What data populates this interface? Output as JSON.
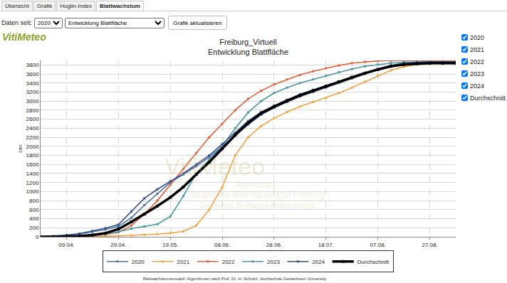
{
  "page": {
    "tabs": [
      "Übersicht",
      "Grafik",
      "Huglin-Index",
      "Blattwachstum"
    ],
    "active_tab": "Blattwachstum",
    "controls": {
      "label": "Daten seit:",
      "year": "2020",
      "dataset": "Entwicklung Blattfläche",
      "button": "Grafik aktualisieren"
    },
    "logo": "VitiMeteo",
    "checkboxes": [
      "2020",
      "2021",
      "2022",
      "2023",
      "2024",
      "Durchschnitt"
    ],
    "watermark": [
      "VitiMeteo",
      "Agroscope",
      "Staatliches Weinbauinstitut Freiburg",
      "Geosens Softwareentwicklung"
    ],
    "footer": "Rebwachstumsmodell: Algorithmen nach Prof. Dr. H. Schultz, Hochschule Geisenheim University."
  },
  "chart_data": {
    "type": "line",
    "title": "Freiburg_Virtuell",
    "subtitle": "Entwicklung Blattfläche",
    "y_label": "cm²",
    "categories": [
      null,
      null,
      "09.04.",
      null,
      null,
      null,
      "29.04.",
      null,
      null,
      null,
      "19.05.",
      null,
      null,
      null,
      "08.06.",
      null,
      null,
      null,
      "28.06.",
      null,
      null,
      null,
      "18.07.",
      null,
      null,
      null,
      "07.08.",
      null,
      null,
      null,
      "27.08.",
      null,
      null
    ],
    "series": [
      {
        "name": "2020",
        "color": "#4f72a6",
        "values": [
          0,
          10,
          30,
          60,
          110,
          160,
          230,
          420,
          700,
          950,
          1200,
          1380,
          1560,
          1760,
          2000,
          2250,
          2480,
          2700,
          2850,
          2980,
          3100,
          3200,
          3300,
          3400,
          3500,
          3600,
          3700,
          3780,
          3830,
          3850,
          3860,
          3860,
          3860
        ]
      },
      {
        "name": "2021",
        "color": "#f2a447",
        "values": [
          0,
          0,
          0,
          0,
          5,
          10,
          20,
          30,
          45,
          60,
          80,
          120,
          250,
          600,
          1100,
          1800,
          2200,
          2450,
          2620,
          2760,
          2880,
          2980,
          3070,
          3180,
          3300,
          3430,
          3560,
          3680,
          3760,
          3810,
          3830,
          3840,
          3840
        ]
      },
      {
        "name": "2022",
        "color": "#e2603a",
        "values": [
          0,
          0,
          5,
          10,
          20,
          50,
          100,
          250,
          500,
          800,
          1150,
          1500,
          1850,
          2200,
          2500,
          2800,
          3050,
          3230,
          3370,
          3480,
          3580,
          3660,
          3730,
          3790,
          3840,
          3870,
          3890,
          3895,
          3895,
          3895,
          3895,
          3895,
          3895
        ]
      },
      {
        "name": "2023",
        "color": "#4b97a3",
        "values": [
          0,
          0,
          5,
          15,
          30,
          60,
          110,
          180,
          230,
          280,
          450,
          900,
          1400,
          1700,
          2000,
          2400,
          2750,
          3000,
          3180,
          3300,
          3400,
          3480,
          3560,
          3640,
          3710,
          3770,
          3810,
          3840,
          3860,
          3870,
          3870,
          3870,
          3870
        ]
      },
      {
        "name": "2024",
        "color": "#33508c",
        "values": [
          0,
          15,
          40,
          70,
          130,
          190,
          270,
          560,
          850,
          1050,
          1230,
          1400,
          1600,
          1800,
          2050,
          2300,
          2560,
          2760,
          2900,
          3030,
          3150,
          3250,
          3340,
          3430,
          3530,
          3620,
          3710,
          3790,
          3840,
          3860,
          3870,
          3870,
          3870
        ]
      },
      {
        "name": "Durchschnitt",
        "color": "#000000",
        "values": [
          0,
          0,
          5,
          15,
          40,
          80,
          170,
          330,
          500,
          680,
          870,
          1100,
          1380,
          1650,
          1950,
          2250,
          2520,
          2730,
          2880,
          3010,
          3130,
          3230,
          3330,
          3430,
          3530,
          3620,
          3700,
          3770,
          3810,
          3830,
          3840,
          3840,
          3840
        ]
      }
    ],
    "ylim": [
      0,
      3900
    ],
    "yticks": [
      0,
      200,
      400,
      600,
      800,
      1000,
      1200,
      1400,
      1600,
      1800,
      2000,
      2200,
      2400,
      2600,
      2800,
      3000,
      3200,
      3400,
      3600,
      3800
    ],
    "grid": true,
    "legend": "bottom",
    "marker": "square",
    "line_style": "solid"
  }
}
